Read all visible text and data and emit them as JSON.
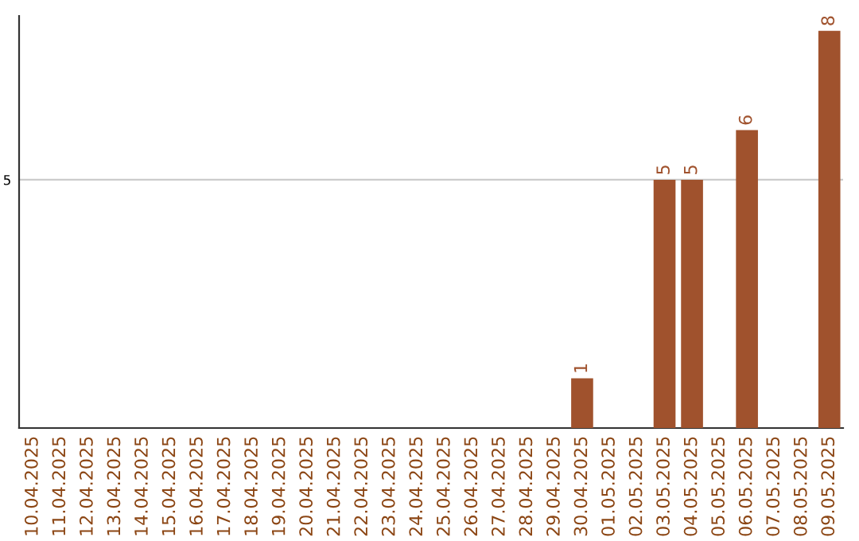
{
  "chart_data": {
    "type": "bar",
    "ylim": [
      0,
      8.3
    ],
    "yticks": [
      5
    ],
    "grid": "y",
    "categories": [
      "10.04.2025",
      "11.04.2025",
      "12.04.2025",
      "13.04.2025",
      "14.04.2025",
      "15.04.2025",
      "16.04.2025",
      "17.04.2025",
      "18.04.2025",
      "19.04.2025",
      "20.04.2025",
      "21.04.2025",
      "22.04.2025",
      "23.04.2025",
      "24.04.2025",
      "25.04.2025",
      "26.04.2025",
      "27.04.2025",
      "28.04.2025",
      "29.04.2025",
      "30.04.2025",
      "01.05.2025",
      "02.05.2025",
      "03.05.2025",
      "04.05.2025",
      "05.05.2025",
      "06.05.2025",
      "07.05.2025",
      "08.05.2025",
      "09.05.2025"
    ],
    "values": [
      null,
      null,
      null,
      null,
      null,
      null,
      null,
      null,
      null,
      null,
      null,
      null,
      null,
      null,
      null,
      null,
      null,
      null,
      null,
      null,
      1,
      null,
      null,
      5,
      5,
      null,
      6,
      null,
      null,
      8
    ],
    "data_labels": true,
    "color": "#a0522d",
    "legend": false
  }
}
